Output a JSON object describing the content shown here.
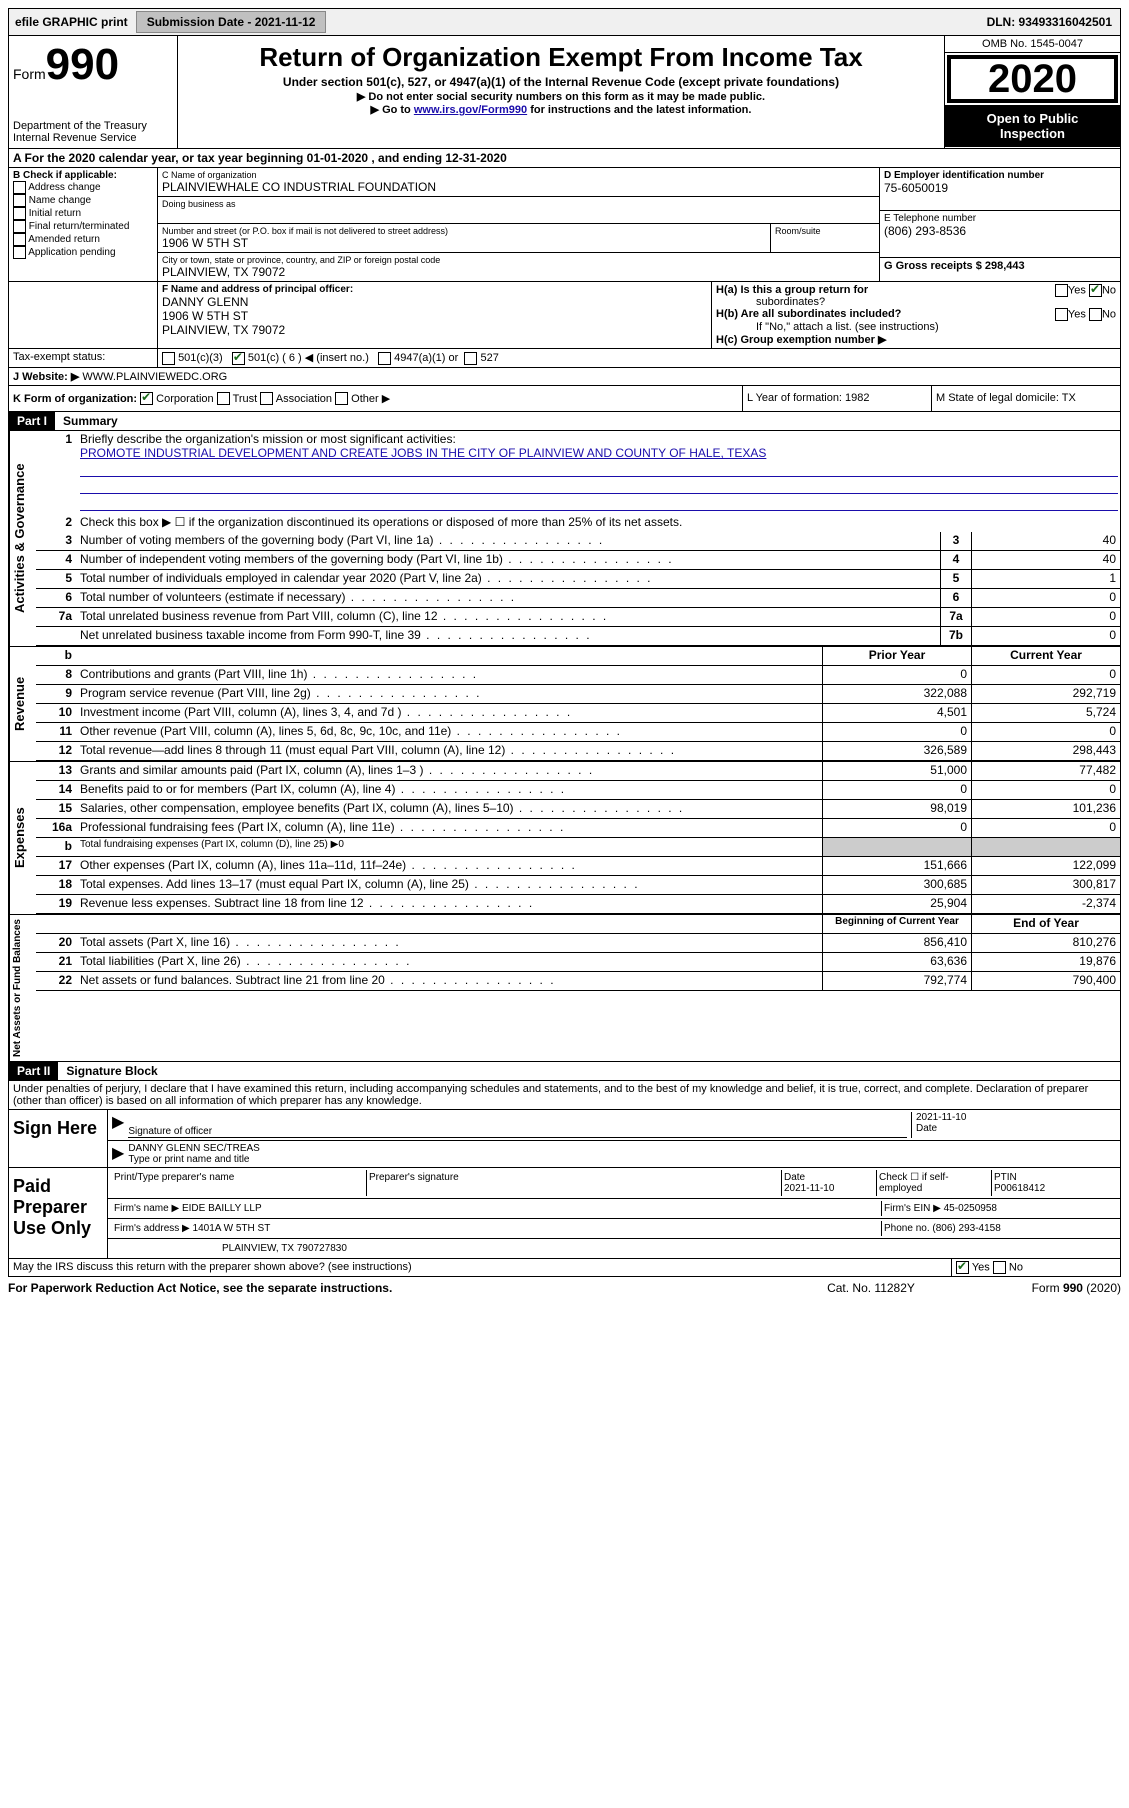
{
  "header": {
    "efile": "efile GRAPHIC print",
    "submission_label": "Submission Date - 2021-11-12",
    "dln": "DLN: 93493316042501"
  },
  "formtop": {
    "form_label": "Form",
    "form_number": "990",
    "dept": "Department of the Treasury",
    "irs": "Internal Revenue Service",
    "title": "Return of Organization Exempt From Income Tax",
    "subtitle": "Under section 501(c), 527, or 4947(a)(1) of the Internal Revenue Code (except private foundations)",
    "note1": "▶ Do not enter social security numbers on this form as it may be made public.",
    "note2_pre": "▶ Go to ",
    "note2_link": "www.irs.gov/Form990",
    "note2_post": " for instructions and the latest information.",
    "omb": "OMB No. 1545-0047",
    "year": "2020",
    "inspection1": "Open to Public",
    "inspection2": "Inspection"
  },
  "sectionA": {
    "period": "A For the 2020 calendar year, or tax year beginning 01-01-2020     , and ending 12-31-2020",
    "b_label": "B Check if applicable:",
    "b_items": [
      "Address change",
      "Name change",
      "Initial return",
      "Final return/terminated",
      "Amended return",
      "Application pending"
    ],
    "c_name_label": "C Name of organization",
    "c_name": "PLAINVIEWHALE CO INDUSTRIAL FOUNDATION",
    "dba_label": "Doing business as",
    "addr_label": "Number and street (or P.O. box if mail is not delivered to street address)",
    "room_label": "Room/suite",
    "addr": "1906 W 5TH ST",
    "city_label": "City or town, state or province, country, and ZIP or foreign postal code",
    "city": "PLAINVIEW, TX  79072",
    "d_label": "D Employer identification number",
    "d_ein": "75-6050019",
    "e_label": "E Telephone number",
    "e_phone": "(806) 293-8536",
    "g_label": "G Gross receipts $ 298,443",
    "f_label": "F  Name and address of principal officer:",
    "f_name": "DANNY GLENN",
    "f_addr1": "1906 W 5TH ST",
    "f_addr2": "PLAINVIEW, TX  79072",
    "ha_label": "H(a)  Is this a group return for",
    "ha_sub": "subordinates?",
    "hb_label": "H(b)  Are all subordinates included?",
    "hb_note": "If \"No,\" attach a list. (see instructions)",
    "hc_label": "H(c)  Group exemption number ▶",
    "i_label": "Tax-exempt status:",
    "i_501c3": "501(c)(3)",
    "i_501c": "501(c) ( 6 ) ◀ (insert no.)",
    "i_4947": "4947(a)(1) or",
    "i_527": "527",
    "j_label": "J Website: ▶",
    "j_site": "WWW.PLAINVIEWEDC.ORG",
    "k_label": "K Form of organization:",
    "k_opts": [
      "Corporation",
      "Trust",
      "Association",
      "Other ▶"
    ],
    "l_label": "L Year of formation: 1982",
    "m_label": "M State of legal domicile: TX"
  },
  "part1": {
    "header": "Part I",
    "title": "Summary",
    "vlabel1": "Activities & Governance",
    "vlabel2": "Revenue",
    "vlabel3": "Expenses",
    "vlabel4": "Net Assets or Fund Balances",
    "line1_label": "Briefly describe the organization's mission or most significant activities:",
    "line1_text": "PROMOTE INDUSTRIAL DEVELOPMENT AND CREATE JOBS IN THE CITY OF PLAINVIEW AND COUNTY OF HALE, TEXAS",
    "line2": "Check this box ▶ ☐ if the organization discontinued its operations or disposed of more than 25% of its net assets.",
    "lines_gov": [
      {
        "n": "3",
        "d": "Number of voting members of the governing body (Part VI, line 1a)",
        "c": "3",
        "v": "40"
      },
      {
        "n": "4",
        "d": "Number of independent voting members of the governing body (Part VI, line 1b)",
        "c": "4",
        "v": "40"
      },
      {
        "n": "5",
        "d": "Total number of individuals employed in calendar year 2020 (Part V, line 2a)",
        "c": "5",
        "v": "1"
      },
      {
        "n": "6",
        "d": "Total number of volunteers (estimate if necessary)",
        "c": "6",
        "v": "0"
      },
      {
        "n": "7a",
        "d": "Total unrelated business revenue from Part VIII, column (C), line 12",
        "c": "7a",
        "v": "0"
      },
      {
        "n": "",
        "d": "Net unrelated business taxable income from Form 990-T, line 39",
        "c": "7b",
        "v": "0"
      }
    ],
    "colhead_b": "b",
    "colhead_prior": "Prior Year",
    "colhead_current": "Current Year",
    "lines_rev": [
      {
        "n": "8",
        "d": "Contributions and grants (Part VIII, line 1h)",
        "p": "0",
        "c": "0"
      },
      {
        "n": "9",
        "d": "Program service revenue (Part VIII, line 2g)",
        "p": "322,088",
        "c": "292,719"
      },
      {
        "n": "10",
        "d": "Investment income (Part VIII, column (A), lines 3, 4, and 7d )",
        "p": "4,501",
        "c": "5,724"
      },
      {
        "n": "11",
        "d": "Other revenue (Part VIII, column (A), lines 5, 6d, 8c, 9c, 10c, and 11e)",
        "p": "0",
        "c": "0"
      },
      {
        "n": "12",
        "d": "Total revenue—add lines 8 through 11 (must equal Part VIII, column (A), line 12)",
        "p": "326,589",
        "c": "298,443"
      }
    ],
    "lines_exp": [
      {
        "n": "13",
        "d": "Grants and similar amounts paid (Part IX, column (A), lines 1–3 )",
        "p": "51,000",
        "c": "77,482"
      },
      {
        "n": "14",
        "d": "Benefits paid to or for members (Part IX, column (A), line 4)",
        "p": "0",
        "c": "0"
      },
      {
        "n": "15",
        "d": "Salaries, other compensation, employee benefits (Part IX, column (A), lines 5–10)",
        "p": "98,019",
        "c": "101,236"
      },
      {
        "n": "16a",
        "d": "Professional fundraising fees (Part IX, column (A), line 11e)",
        "p": "0",
        "c": "0"
      }
    ],
    "line16b": "Total fundraising expenses (Part IX, column (D), line 25) ▶0",
    "lines_exp2": [
      {
        "n": "17",
        "d": "Other expenses (Part IX, column (A), lines 11a–11d, 11f–24e)",
        "p": "151,666",
        "c": "122,099"
      },
      {
        "n": "18",
        "d": "Total expenses. Add lines 13–17 (must equal Part IX, column (A), line 25)",
        "p": "300,685",
        "c": "300,817"
      },
      {
        "n": "19",
        "d": "Revenue less expenses. Subtract line 18 from line 12",
        "p": "25,904",
        "c": "-2,374"
      }
    ],
    "colhead_begin": "Beginning of Current Year",
    "colhead_end": "End of Year",
    "lines_net": [
      {
        "n": "20",
        "d": "Total assets (Part X, line 16)",
        "p": "856,410",
        "c": "810,276"
      },
      {
        "n": "21",
        "d": "Total liabilities (Part X, line 26)",
        "p": "63,636",
        "c": "19,876"
      },
      {
        "n": "22",
        "d": "Net assets or fund balances. Subtract line 21 from line 20",
        "p": "792,774",
        "c": "790,400"
      }
    ]
  },
  "part2": {
    "header": "Part II",
    "title": "Signature Block",
    "penalties": "Under penalties of perjury, I declare that I have examined this return, including accompanying schedules and statements, and to the best of my knowledge and belief, it is true, correct, and complete. Declaration of preparer (other than officer) is based on all information of which preparer has any knowledge.",
    "sign_here": "Sign Here",
    "sig_officer": "Signature of officer",
    "sig_date_label": "Date",
    "sig_date": "2021-11-10",
    "sig_name": "DANNY GLENN  SEC/TREAS",
    "sig_name_label": "Type or print name and title",
    "paid": "Paid Preparer Use Only",
    "prep_name_label": "Print/Type preparer's name",
    "prep_sig_label": "Preparer's signature",
    "prep_date_label": "Date",
    "prep_date": "2021-11-10",
    "prep_check_label": "Check ☐ if self-employed",
    "ptin_label": "PTIN",
    "ptin": "P00618412",
    "firm_name_label": "Firm's name    ▶",
    "firm_name": "EIDE BAILLY LLP",
    "firm_ein_label": "Firm's EIN ▶",
    "firm_ein": "45-0250958",
    "firm_addr_label": "Firm's address ▶",
    "firm_addr1": "1401A W 5TH ST",
    "firm_addr2": "PLAINVIEW, TX  790727830",
    "firm_phone_label": "Phone no.",
    "firm_phone": "(806) 293-4158",
    "discuss": "May the IRS discuss this return with the preparer shown above? (see instructions)"
  },
  "footer": {
    "left": "For Paperwork Reduction Act Notice, see the separate instructions.",
    "mid": "Cat. No. 11282Y",
    "right": "Form 990 (2020)"
  }
}
